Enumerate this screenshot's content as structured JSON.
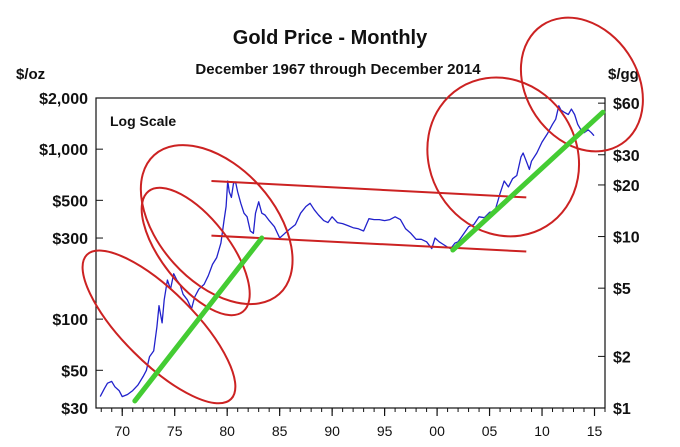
{
  "chart_data": {
    "type": "line",
    "title": "Gold Price - Monthly",
    "subtitle": "December 1967 through December 2014",
    "ylabel_left": "$/oz",
    "ylabel_right": "$/gg",
    "annotation": "Log Scale",
    "y_scale": "log",
    "xlim": [
      1967.5,
      2016.0
    ],
    "ylim_left": [
      30,
      2000
    ],
    "ylim_right": [
      1,
      64.3
    ],
    "left_ticks": [
      {
        "value": 2000,
        "label": "$2,000"
      },
      {
        "value": 1000,
        "label": "$1,000"
      },
      {
        "value": 500,
        "label": "$500"
      },
      {
        "value": 300,
        "label": "$300"
      },
      {
        "value": 100,
        "label": "$100"
      },
      {
        "value": 50,
        "label": "$50"
      },
      {
        "value": 30,
        "label": "$30"
      }
    ],
    "right_ticks": [
      {
        "value": 60,
        "label": "$60"
      },
      {
        "value": 30,
        "label": "$30"
      },
      {
        "value": 20,
        "label": "$20"
      },
      {
        "value": 10,
        "label": "$10"
      },
      {
        "value": 5,
        "label": "$5"
      },
      {
        "value": 2,
        "label": "$2"
      },
      {
        "value": 1,
        "label": "$1"
      }
    ],
    "x_ticks": [
      {
        "value": 1970,
        "label": "70"
      },
      {
        "value": 1975,
        "label": "75"
      },
      {
        "value": 1980,
        "label": "80"
      },
      {
        "value": 1985,
        "label": "85"
      },
      {
        "value": 1990,
        "label": "90"
      },
      {
        "value": 1995,
        "label": "95"
      },
      {
        "value": 2000,
        "label": "00"
      },
      {
        "value": 2005,
        "label": "05"
      },
      {
        "value": 2010,
        "label": "10"
      },
      {
        "value": 2015,
        "label": "15"
      }
    ],
    "x_minor_step": 1,
    "series": [
      {
        "color": "#2222cc",
        "points": [
          [
            1967.9,
            35
          ],
          [
            1968.3,
            39
          ],
          [
            1968.6,
            42
          ],
          [
            1969.0,
            43
          ],
          [
            1969.3,
            40
          ],
          [
            1969.7,
            38
          ],
          [
            1970.0,
            35
          ],
          [
            1970.5,
            36
          ],
          [
            1971.0,
            38
          ],
          [
            1971.5,
            41
          ],
          [
            1972.0,
            46
          ],
          [
            1972.3,
            50
          ],
          [
            1972.6,
            60
          ],
          [
            1973.0,
            65
          ],
          [
            1973.3,
            90
          ],
          [
            1973.5,
            120
          ],
          [
            1973.8,
            95
          ],
          [
            1974.0,
            130
          ],
          [
            1974.3,
            170
          ],
          [
            1974.6,
            150
          ],
          [
            1974.9,
            185
          ],
          [
            1975.2,
            170
          ],
          [
            1975.5,
            160
          ],
          [
            1975.8,
            140
          ],
          [
            1976.2,
            130
          ],
          [
            1976.6,
            115
          ],
          [
            1976.9,
            135
          ],
          [
            1977.3,
            150
          ],
          [
            1977.8,
            160
          ],
          [
            1978.2,
            180
          ],
          [
            1978.6,
            210
          ],
          [
            1979.0,
            230
          ],
          [
            1979.4,
            280
          ],
          [
            1979.7,
            380
          ],
          [
            1979.9,
            460
          ],
          [
            1980.05,
            650
          ],
          [
            1980.2,
            560
          ],
          [
            1980.4,
            520
          ],
          [
            1980.6,
            630
          ],
          [
            1980.8,
            640
          ],
          [
            1981.0,
            560
          ],
          [
            1981.3,
            480
          ],
          [
            1981.6,
            420
          ],
          [
            1981.9,
            400
          ],
          [
            1982.2,
            330
          ],
          [
            1982.5,
            320
          ],
          [
            1982.7,
            420
          ],
          [
            1983.0,
            490
          ],
          [
            1983.3,
            420
          ],
          [
            1983.6,
            410
          ],
          [
            1984.0,
            380
          ],
          [
            1984.5,
            350
          ],
          [
            1985.0,
            300
          ],
          [
            1985.5,
            320
          ],
          [
            1986.0,
            340
          ],
          [
            1986.5,
            360
          ],
          [
            1987.0,
            420
          ],
          [
            1987.5,
            460
          ],
          [
            1987.9,
            480
          ],
          [
            1988.3,
            440
          ],
          [
            1988.7,
            410
          ],
          [
            1989.2,
            380
          ],
          [
            1989.6,
            370
          ],
          [
            1990.0,
            400
          ],
          [
            1990.5,
            370
          ],
          [
            1991.0,
            365
          ],
          [
            1991.5,
            355
          ],
          [
            1992.0,
            345
          ],
          [
            1992.5,
            340
          ],
          [
            1993.0,
            330
          ],
          [
            1993.5,
            390
          ],
          [
            1994.0,
            385
          ],
          [
            1994.5,
            385
          ],
          [
            1995.0,
            380
          ],
          [
            1995.5,
            385
          ],
          [
            1996.0,
            400
          ],
          [
            1996.5,
            385
          ],
          [
            1997.0,
            340
          ],
          [
            1997.5,
            320
          ],
          [
            1998.0,
            295
          ],
          [
            1998.5,
            295
          ],
          [
            1999.0,
            285
          ],
          [
            1999.5,
            260
          ],
          [
            1999.8,
            300
          ],
          [
            2000.2,
            285
          ],
          [
            2000.6,
            275
          ],
          [
            2001.0,
            265
          ],
          [
            2001.3,
            260
          ],
          [
            2001.7,
            280
          ],
          [
            2002.0,
            285
          ],
          [
            2002.5,
            315
          ],
          [
            2003.0,
            350
          ],
          [
            2003.5,
            360
          ],
          [
            2004.0,
            400
          ],
          [
            2004.5,
            395
          ],
          [
            2005.0,
            425
          ],
          [
            2005.5,
            430
          ],
          [
            2006.0,
            550
          ],
          [
            2006.4,
            650
          ],
          [
            2006.8,
            600
          ],
          [
            2007.2,
            670
          ],
          [
            2007.6,
            700
          ],
          [
            2008.0,
            900
          ],
          [
            2008.2,
            950
          ],
          [
            2008.5,
            850
          ],
          [
            2008.8,
            760
          ],
          [
            2009.0,
            850
          ],
          [
            2009.5,
            950
          ],
          [
            2010.0,
            1100
          ],
          [
            2010.5,
            1230
          ],
          [
            2011.0,
            1400
          ],
          [
            2011.3,
            1500
          ],
          [
            2011.6,
            1800
          ],
          [
            2011.8,
            1700
          ],
          [
            2012.1,
            1650
          ],
          [
            2012.5,
            1600
          ],
          [
            2012.8,
            1720
          ],
          [
            2013.1,
            1600
          ],
          [
            2013.4,
            1400
          ],
          [
            2013.7,
            1300
          ],
          [
            2014.0,
            1250
          ],
          [
            2014.4,
            1300
          ],
          [
            2014.7,
            1250
          ],
          [
            2014.95,
            1200
          ]
        ]
      }
    ],
    "overlays": {
      "channel_lines": [
        {
          "color": "#cc2222",
          "from": [
            1978.5,
            650
          ],
          "to": [
            2008.5,
            520
          ]
        },
        {
          "color": "#cc2222",
          "from": [
            1978.5,
            310
          ],
          "to": [
            2008.5,
            250
          ]
        }
      ],
      "trend_lines": [
        {
          "color": "#44cc33",
          "from": [
            1971.2,
            33
          ],
          "to": [
            1983.3,
            300
          ]
        },
        {
          "color": "#44cc33",
          "from": [
            2001.5,
            255
          ],
          "to": [
            2015.8,
            1650
          ]
        }
      ],
      "ellipses": [
        {
          "color": "#cc2222",
          "center": [
            1973.5,
            90
          ],
          "rx_years": 3.4,
          "ry_decades": 0.6,
          "angle": -45
        },
        {
          "color": "#cc2222",
          "center": [
            1979.0,
            360
          ],
          "rx_years": 5.5,
          "ry_decades": 0.55,
          "angle": -42
        },
        {
          "color": "#cc2222",
          "center": [
            2006.3,
            900
          ],
          "rx_years": 7.0,
          "ry_decades": 0.48,
          "angle": -32
        },
        {
          "color": "#cc2222",
          "center": [
            2013.8,
            2400
          ],
          "rx_years": 5.3,
          "ry_decades": 0.42,
          "angle": -34
        },
        {
          "color": "#cc2222",
          "center": [
            1977.0,
            250
          ],
          "rx_years": 3.2,
          "ry_decades": 0.45,
          "angle": -38
        }
      ]
    }
  }
}
